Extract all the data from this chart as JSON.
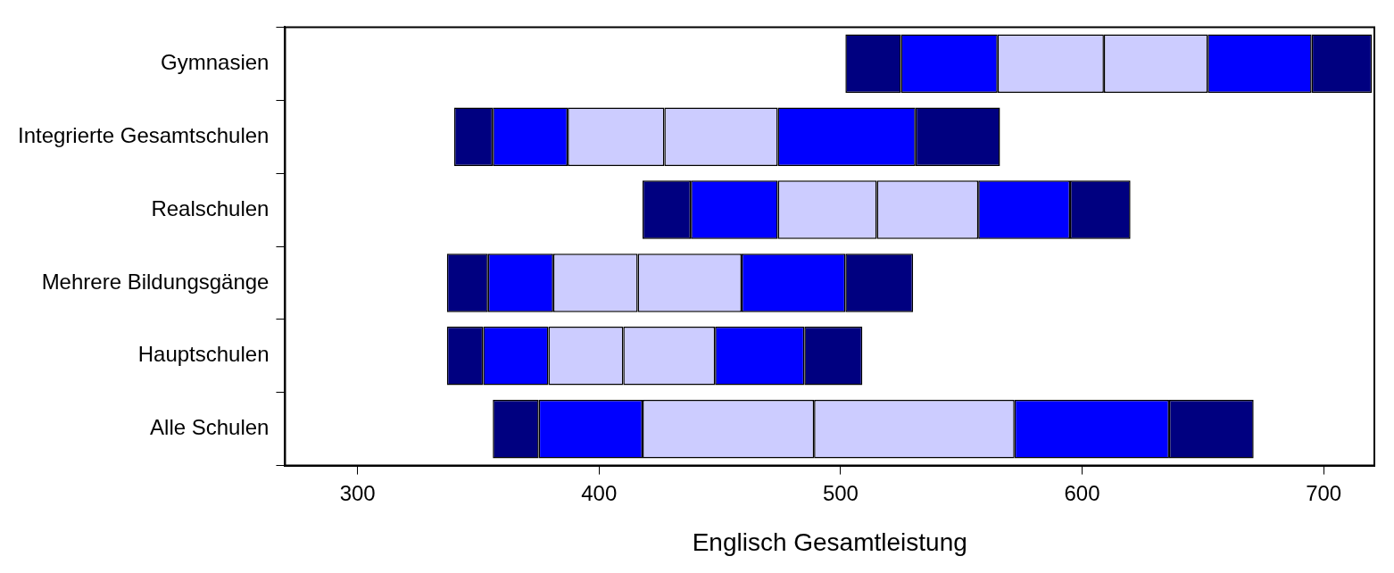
{
  "chart_data": {
    "type": "bar",
    "orientation": "horizontal",
    "xlabel": "Englisch Gesamtleistung",
    "categories": [
      "Gymnasien",
      "Integrierte Gesamtschulen",
      "Realschulen",
      "Mehrere Bildungsgänge",
      "Hauptschulen",
      "Alle Schulen"
    ],
    "series": [
      {
        "color": "#000080",
        "base": [
          502,
          340,
          418,
          337,
          337,
          356
        ],
        "values": [
          23,
          16,
          20,
          17,
          15,
          19
        ]
      },
      {
        "color": "#0000ff",
        "base": [
          525,
          356,
          438,
          354,
          352,
          375
        ],
        "values": [
          40,
          31,
          36,
          27,
          27,
          43
        ]
      },
      {
        "color": "#ccccff",
        "base": [
          565,
          387,
          474,
          381,
          379,
          418
        ],
        "values": [
          44,
          40,
          41,
          35,
          31,
          71
        ]
      },
      {
        "color": "#ccccff",
        "base": [
          609,
          427,
          515,
          416,
          410,
          489
        ],
        "values": [
          43,
          47,
          42,
          43,
          38,
          83
        ]
      },
      {
        "color": "#0000ff",
        "base": [
          652,
          474,
          557,
          459,
          448,
          572
        ],
        "values": [
          43,
          57,
          38,
          43,
          37,
          64
        ]
      },
      {
        "color": "#000080",
        "base": [
          695,
          531,
          595,
          502,
          485,
          636
        ],
        "values": [
          25,
          35,
          25,
          28,
          24,
          35
        ]
      }
    ],
    "xlim": [
      270,
      721
    ],
    "xticks": [
      300,
      400,
      500,
      600,
      700
    ],
    "grid": false,
    "legend": false
  }
}
